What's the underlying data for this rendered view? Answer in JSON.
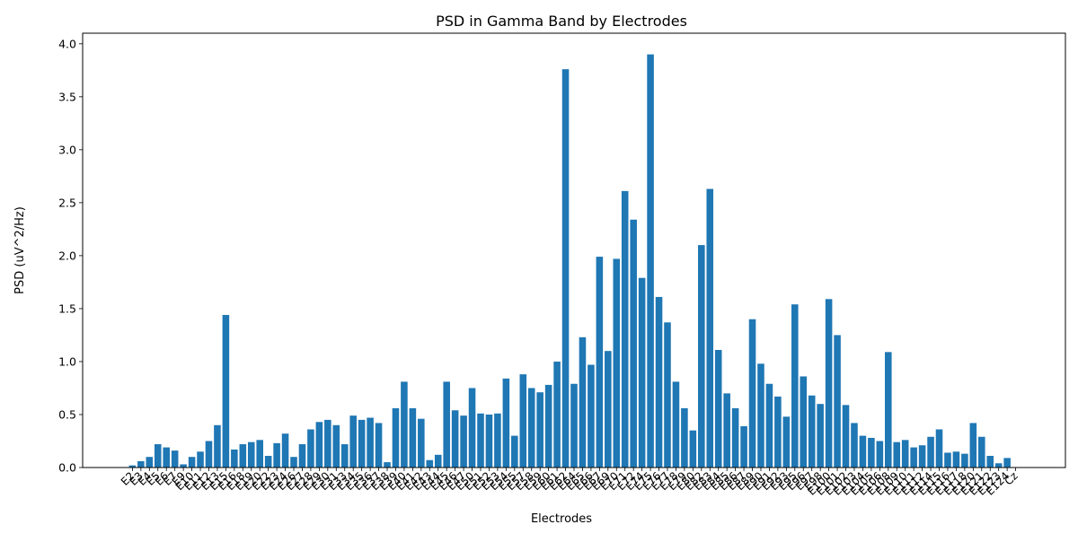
{
  "chart_data": {
    "type": "bar",
    "title": "PSD in Gamma Band by Electrodes",
    "xlabel": "Electrodes",
    "ylabel": "PSD (uV^2/Hz)",
    "ylim": [
      0,
      4.1
    ],
    "yticks": [
      0.0,
      0.5,
      1.0,
      1.5,
      2.0,
      2.5,
      3.0,
      3.5,
      4.0
    ],
    "ytick_labels": [
      "0.0",
      "0.5",
      "1.0",
      "1.5",
      "2.0",
      "2.5",
      "3.0",
      "3.5",
      "4.0"
    ],
    "grid": false,
    "bar_color": "#1f77b4",
    "categories": [
      "E2",
      "E3",
      "E4",
      "E5",
      "E6",
      "E7",
      "E9",
      "E10",
      "E11",
      "E12",
      "E13",
      "E15",
      "E16",
      "E18",
      "E19",
      "E20",
      "E22",
      "E23",
      "E24",
      "E26",
      "E27",
      "E28",
      "E29",
      "E30",
      "E31",
      "E33",
      "E34",
      "E35",
      "E36",
      "E37",
      "E38",
      "E39",
      "E40",
      "E41",
      "E42",
      "E43",
      "E44",
      "E45",
      "E46",
      "E47",
      "E50",
      "E51",
      "E52",
      "E53",
      "E54",
      "E55",
      "E57",
      "E58",
      "E59",
      "E60",
      "E61",
      "E62",
      "E64",
      "E65",
      "E66",
      "E67",
      "E69",
      "E70",
      "E71",
      "E72",
      "E74",
      "E75",
      "E76",
      "E77",
      "E78",
      "E79",
      "E80",
      "E82",
      "E83",
      "E84",
      "E85",
      "E86",
      "E87",
      "E89",
      "E90",
      "E91",
      "E92",
      "E93",
      "E95",
      "E96",
      "E97",
      "E98",
      "E100",
      "E101",
      "E102",
      "E103",
      "E104",
      "E105",
      "E106",
      "E108",
      "E109",
      "E110",
      "E111",
      "E112",
      "E114",
      "E115",
      "E116",
      "E117",
      "E118",
      "E120",
      "E121",
      "E122",
      "E123",
      "E124",
      "Cz"
    ],
    "values": [
      0.02,
      0.06,
      0.1,
      0.22,
      0.19,
      0.16,
      0.03,
      0.1,
      0.15,
      0.25,
      0.4,
      1.44,
      0.17,
      0.22,
      0.24,
      0.26,
      0.11,
      0.23,
      0.32,
      0.1,
      0.22,
      0.36,
      0.43,
      0.45,
      0.4,
      0.22,
      0.49,
      0.45,
      0.47,
      0.42,
      0.05,
      0.56,
      0.81,
      0.56,
      0.46,
      0.07,
      0.12,
      0.81,
      0.54,
      0.49,
      0.75,
      0.51,
      0.5,
      0.51,
      0.84,
      0.3,
      0.88,
      0.75,
      0.71,
      0.78,
      1.0,
      3.76,
      0.79,
      1.23,
      0.97,
      1.99,
      1.1,
      1.97,
      2.61,
      2.34,
      1.79,
      3.9,
      1.61,
      1.37,
      0.81,
      0.56,
      0.35,
      2.1,
      2.63,
      1.11,
      0.7,
      0.56,
      0.39,
      1.4,
      0.98,
      0.79,
      0.67,
      0.48,
      1.54,
      0.86,
      0.68,
      0.6,
      1.59,
      1.25,
      0.59,
      0.42,
      0.3,
      0.28,
      0.25,
      1.09,
      0.24,
      0.26,
      0.19,
      0.21,
      0.29,
      0.36,
      0.14,
      0.15,
      0.13,
      0.42,
      0.29,
      0.11,
      0.04,
      0.09,
      0.0
    ]
  }
}
